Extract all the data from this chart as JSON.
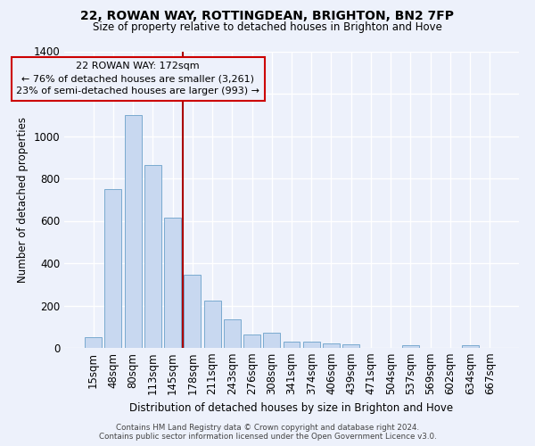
{
  "title_line1": "22, ROWAN WAY, ROTTINGDEAN, BRIGHTON, BN2 7FP",
  "title_line2": "Size of property relative to detached houses in Brighton and Hove",
  "xlabel": "Distribution of detached houses by size in Brighton and Hove",
  "ylabel": "Number of detached properties",
  "footer_line1": "Contains HM Land Registry data © Crown copyright and database right 2024.",
  "footer_line2": "Contains public sector information licensed under the Open Government Licence v3.0.",
  "categories": [
    "15sqm",
    "48sqm",
    "80sqm",
    "113sqm",
    "145sqm",
    "178sqm",
    "211sqm",
    "243sqm",
    "276sqm",
    "308sqm",
    "341sqm",
    "374sqm",
    "406sqm",
    "439sqm",
    "471sqm",
    "504sqm",
    "537sqm",
    "569sqm",
    "602sqm",
    "634sqm",
    "667sqm"
  ],
  "values": [
    50,
    750,
    1100,
    865,
    615,
    345,
    225,
    135,
    62,
    70,
    30,
    30,
    22,
    15,
    0,
    0,
    12,
    0,
    0,
    12,
    0
  ],
  "bar_color": "#c8d8f0",
  "bar_edge_color": "#7aaacf",
  "vline_color": "#aa0000",
  "annotation_box_edge_color": "#cc0000",
  "annotation_line1": "22 ROWAN WAY: 172sqm",
  "annotation_line2": "← 76% of detached houses are smaller (3,261)",
  "annotation_line3": "23% of semi-detached houses are larger (993) →",
  "bg_color": "#edf1fb",
  "grid_color": "#ffffff",
  "ylim": [
    0,
    1400
  ],
  "yticks": [
    0,
    200,
    400,
    600,
    800,
    1000,
    1200,
    1400
  ],
  "vline_index": 4.5
}
